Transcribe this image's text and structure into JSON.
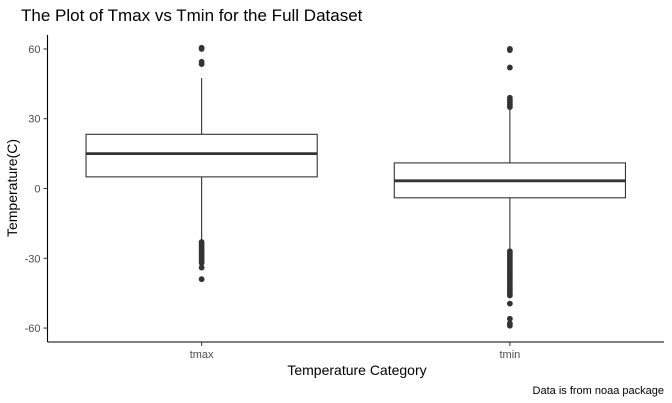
{
  "chart_data": {
    "type": "boxplot",
    "title": "The Plot of Tmax vs Tmin for the Full Dataset",
    "xlabel": "Temperature Category",
    "ylabel": "Temperature(C)",
    "caption": "Data is from noaa package",
    "ylim": [
      -66,
      66
    ],
    "yticks": [
      -60,
      -30,
      0,
      30,
      60
    ],
    "grid": false,
    "categories": [
      "tmax",
      "tmin"
    ],
    "boxes": [
      {
        "category": "tmax",
        "whisker_low": -22,
        "q1": 5,
        "median": 15,
        "q3": 23.3,
        "whisker_high": 47.5,
        "outliers": [
          -23,
          -24,
          -25,
          -26,
          -27,
          -28,
          -29,
          -30,
          -31,
          -32,
          -34,
          -39,
          53.5,
          54.5,
          60,
          60.5
        ]
      },
      {
        "category": "tmin",
        "whisker_low": -26,
        "q1": -4,
        "median": 3.3,
        "q3": 11,
        "whisker_high": 34,
        "outliers": [
          -27,
          -28,
          -29,
          -30,
          -31,
          -32,
          -33,
          -34,
          -35,
          -36,
          -37,
          -38,
          -39,
          -40,
          -41,
          -42,
          -43,
          -44,
          -45,
          -46,
          -49.5,
          -56,
          -58,
          -59,
          35,
          36,
          37,
          38,
          39,
          52,
          59.5,
          60
        ]
      }
    ]
  }
}
